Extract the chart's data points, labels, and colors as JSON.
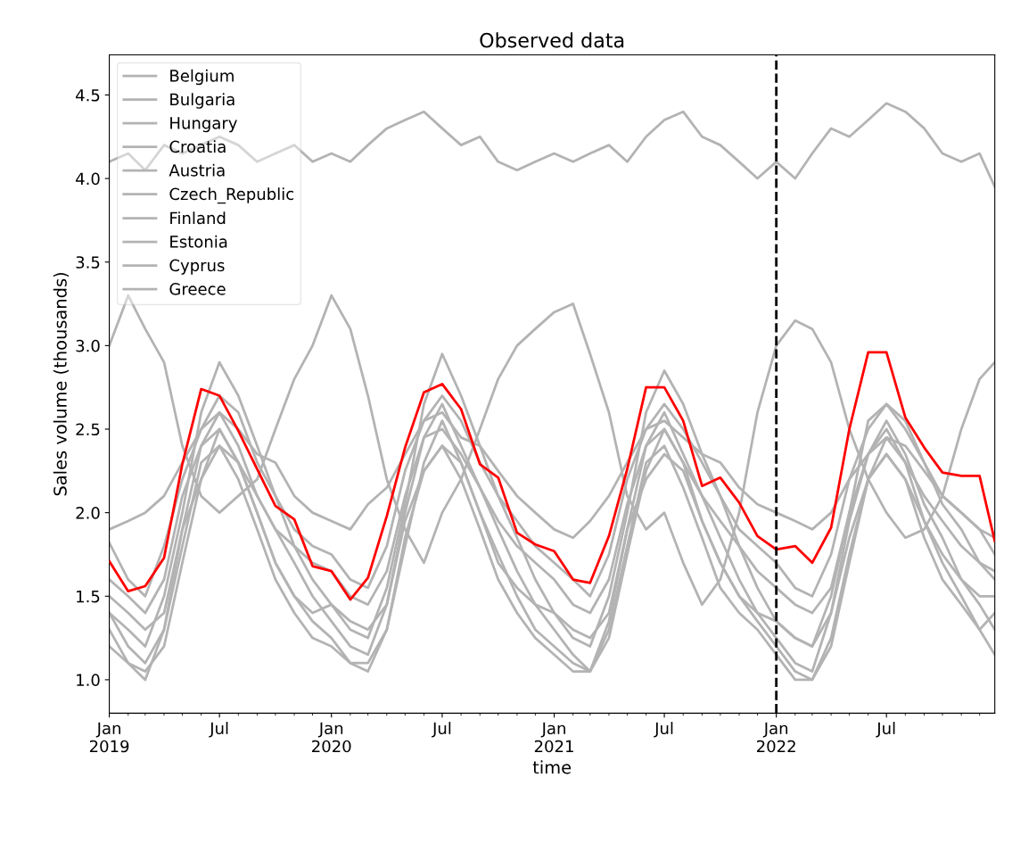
{
  "chart_data": {
    "type": "line",
    "title": "Observed data",
    "xlabel": "time",
    "ylabel": "Sales volume (thousands)",
    "x": [
      "2019-01",
      "2019-02",
      "2019-03",
      "2019-04",
      "2019-05",
      "2019-06",
      "2019-07",
      "2019-08",
      "2019-09",
      "2019-10",
      "2019-11",
      "2019-12",
      "2020-01",
      "2020-02",
      "2020-03",
      "2020-04",
      "2020-05",
      "2020-06",
      "2020-07",
      "2020-08",
      "2020-09",
      "2020-10",
      "2020-11",
      "2020-12",
      "2021-01",
      "2021-02",
      "2021-03",
      "2021-04",
      "2021-05",
      "2021-06",
      "2021-07",
      "2021-08",
      "2021-09",
      "2021-10",
      "2021-11",
      "2021-12",
      "2022-01",
      "2022-02",
      "2022-03",
      "2022-04",
      "2022-05",
      "2022-06",
      "2022-07",
      "2022-08",
      "2022-09",
      "2022-10",
      "2022-11",
      "2022-12",
      "2022-12-26"
    ],
    "xlim": [
      "2019-01-01",
      "2022-12-26"
    ],
    "xticks": [
      {
        "value": "2019-01",
        "label": "Jan\n2019"
      },
      {
        "value": "2019-07",
        "label": "Jul"
      },
      {
        "value": "2020-01",
        "label": "Jan\n2020"
      },
      {
        "value": "2020-07",
        "label": "Jul"
      },
      {
        "value": "2021-01",
        "label": "Jan\n2021"
      },
      {
        "value": "2021-07",
        "label": "Jul"
      },
      {
        "value": "2022-01",
        "label": "Jan\n2022"
      },
      {
        "value": "2022-07",
        "label": "Jul"
      }
    ],
    "ylim": [
      0.8,
      4.74
    ],
    "yticks": [
      {
        "value": 1,
        "label": "1.0"
      },
      1.5,
      {
        "value": 2,
        "label": "2.0"
      },
      2.5,
      {
        "value": 3,
        "label": "3.0"
      },
      3.5,
      {
        "value": 4,
        "label": "4.0"
      },
      4.5
    ],
    "grid": false,
    "legend": "top left",
    "line_style": "solid",
    "ref_lines": [
      {
        "axis": "x",
        "value": "2022-01-01",
        "color": "#000000",
        "line_style": "dashed"
      }
    ],
    "series": [
      {
        "name": "Belgium",
        "color": "#b3b3b3",
        "values": [
          4.1,
          4.15,
          4.05,
          4.2,
          4.15,
          4.2,
          4.25,
          4.2,
          4.1,
          4.15,
          4.2,
          4.1,
          4.15,
          4.1,
          4.2,
          4.3,
          4.35,
          4.4,
          4.3,
          4.2,
          4.25,
          4.1,
          4.05,
          4.1,
          4.15,
          4.1,
          4.15,
          4.2,
          4.1,
          4.25,
          4.35,
          4.4,
          4.25,
          4.2,
          4.1,
          4.0,
          4.1,
          4.0,
          4.15,
          4.3,
          4.25,
          4.35,
          4.45,
          4.4,
          4.3,
          4.15,
          4.1,
          4.15,
          3.95
        ]
      },
      {
        "name": "Bulgaria",
        "color": "#b3b3b3",
        "values": [
          3.0,
          3.3,
          3.1,
          2.9,
          2.4,
          2.1,
          2.0,
          2.1,
          2.2,
          2.5,
          2.8,
          3.0,
          3.3,
          3.1,
          2.7,
          2.2,
          1.9,
          1.7,
          2.0,
          2.2,
          2.5,
          2.8,
          3.0,
          3.1,
          3.2,
          3.25,
          2.95,
          2.6,
          2.1,
          1.9,
          2.0,
          1.7,
          1.45,
          1.6,
          2.0,
          2.6,
          3.0,
          3.15,
          3.1,
          2.9,
          2.5,
          2.2,
          2.0,
          1.85,
          1.9,
          2.1,
          2.5,
          2.8,
          2.9
        ]
      },
      {
        "name": "Hungary",
        "color": "#b3b3b3",
        "values": [
          1.9,
          1.95,
          2.0,
          2.1,
          2.3,
          2.5,
          2.6,
          2.5,
          2.35,
          2.3,
          2.1,
          2.0,
          1.95,
          1.9,
          2.05,
          2.15,
          2.35,
          2.55,
          2.6,
          2.45,
          2.4,
          2.25,
          2.1,
          2.0,
          1.9,
          1.85,
          1.95,
          2.1,
          2.3,
          2.5,
          2.55,
          2.45,
          2.35,
          2.3,
          2.15,
          2.05,
          2.0,
          1.95,
          1.9,
          2.0,
          2.2,
          2.35,
          2.45,
          2.4,
          2.25,
          2.1,
          2.0,
          1.9,
          1.85
        ]
      },
      {
        "name": "Croatia",
        "color": "#b3b3b3",
        "values": [
          1.4,
          1.2,
          1.1,
          1.3,
          1.9,
          2.4,
          2.6,
          2.4,
          2.1,
          1.9,
          1.7,
          1.5,
          1.35,
          1.2,
          1.15,
          1.45,
          2.0,
          2.45,
          2.65,
          2.4,
          2.15,
          1.9,
          1.65,
          1.45,
          1.3,
          1.15,
          1.05,
          1.35,
          1.9,
          2.4,
          2.6,
          2.35,
          2.1,
          1.85,
          1.6,
          1.4,
          1.25,
          1.1,
          1.05,
          1.4,
          1.95,
          2.35,
          2.55,
          2.35,
          2.05,
          1.85,
          1.6,
          1.45,
          1.3
        ]
      },
      {
        "name": "Austria",
        "color": "#b3b3b3",
        "values": [
          1.3,
          1.1,
          1.05,
          1.2,
          1.7,
          2.2,
          2.5,
          2.3,
          2.0,
          1.7,
          1.5,
          1.35,
          1.25,
          1.1,
          1.1,
          1.3,
          1.8,
          2.3,
          2.55,
          2.3,
          2.0,
          1.75,
          1.5,
          1.3,
          1.2,
          1.1,
          1.05,
          1.25,
          1.75,
          2.25,
          2.5,
          2.3,
          1.95,
          1.7,
          1.5,
          1.35,
          1.2,
          1.05,
          1.0,
          1.2,
          1.7,
          2.2,
          2.45,
          2.3,
          1.95,
          1.7,
          1.5,
          1.3,
          1.15
        ]
      },
      {
        "name": "Czech_Republic",
        "color": "#b3b3b3",
        "values": [
          1.6,
          1.5,
          1.4,
          1.6,
          2.1,
          2.4,
          2.5,
          2.3,
          2.1,
          1.9,
          1.8,
          1.7,
          1.65,
          1.5,
          1.45,
          1.65,
          2.1,
          2.45,
          2.5,
          2.35,
          2.15,
          1.95,
          1.8,
          1.7,
          1.6,
          1.45,
          1.4,
          1.6,
          2.05,
          2.4,
          2.5,
          2.3,
          2.1,
          1.95,
          1.8,
          1.65,
          1.55,
          1.45,
          1.4,
          1.55,
          2.0,
          2.35,
          2.5,
          2.3,
          2.1,
          1.95,
          1.8,
          1.7,
          1.6
        ]
      },
      {
        "name": "Finland",
        "color": "#b3b3b3",
        "values": [
          1.2,
          1.1,
          1.0,
          1.3,
          1.8,
          2.3,
          2.4,
          2.2,
          1.9,
          1.6,
          1.4,
          1.25,
          1.2,
          1.1,
          1.05,
          1.3,
          1.85,
          2.25,
          2.4,
          2.2,
          1.9,
          1.6,
          1.4,
          1.25,
          1.15,
          1.05,
          1.05,
          1.3,
          1.8,
          2.3,
          2.4,
          2.15,
          1.85,
          1.55,
          1.4,
          1.3,
          1.15,
          1.0,
          1.0,
          1.25,
          1.75,
          2.2,
          2.35,
          2.2,
          1.85,
          1.6,
          1.45,
          1.3,
          1.4
        ]
      },
      {
        "name": "Estonia",
        "color": "#b3b3b3",
        "values": [
          1.82,
          1.6,
          1.5,
          1.8,
          2.2,
          2.5,
          2.7,
          2.6,
          2.3,
          2.1,
          1.9,
          1.8,
          1.75,
          1.6,
          1.55,
          1.8,
          2.25,
          2.55,
          2.7,
          2.55,
          2.3,
          2.1,
          1.95,
          1.8,
          1.7,
          1.6,
          1.5,
          1.75,
          2.2,
          2.5,
          2.65,
          2.5,
          2.3,
          2.1,
          1.9,
          1.8,
          1.7,
          1.55,
          1.5,
          1.75,
          2.2,
          2.5,
          2.65,
          2.5,
          2.3,
          2.1,
          2.0,
          1.9,
          1.75
        ]
      },
      {
        "name": "Cyprus",
        "color": "#b3b3b3",
        "values": [
          1.5,
          1.4,
          1.3,
          1.4,
          1.9,
          2.2,
          2.4,
          2.3,
          2.0,
          1.7,
          1.5,
          1.4,
          1.45,
          1.35,
          1.3,
          1.45,
          1.95,
          2.25,
          2.4,
          2.3,
          2.0,
          1.7,
          1.55,
          1.45,
          1.4,
          1.3,
          1.25,
          1.4,
          1.9,
          2.2,
          2.35,
          2.25,
          1.95,
          1.7,
          1.5,
          1.4,
          1.35,
          1.25,
          1.2,
          1.4,
          1.85,
          2.2,
          2.35,
          2.2,
          1.95,
          1.75,
          1.6,
          1.5,
          1.5
        ]
      },
      {
        "name": "Greece",
        "color": "#b3b3b3",
        "values": [
          1.4,
          1.3,
          1.2,
          1.5,
          2.0,
          2.6,
          2.9,
          2.7,
          2.4,
          2.1,
          1.8,
          1.6,
          1.45,
          1.3,
          1.25,
          1.55,
          2.05,
          2.65,
          2.95,
          2.7,
          2.4,
          2.1,
          1.85,
          1.6,
          1.4,
          1.25,
          1.2,
          1.5,
          2.0,
          2.6,
          2.85,
          2.65,
          2.35,
          2.1,
          1.8,
          1.55,
          1.35,
          1.25,
          1.2,
          1.5,
          2.0,
          2.55,
          2.65,
          2.55,
          2.3,
          2.05,
          1.9,
          1.7,
          1.65
        ]
      },
      {
        "color": "#ff0000",
        "values": [
          1.71,
          1.53,
          1.56,
          1.73,
          2.29,
          2.74,
          2.7,
          2.49,
          2.26,
          2.04,
          1.96,
          1.68,
          1.65,
          1.48,
          1.61,
          1.98,
          2.39,
          2.72,
          2.77,
          2.62,
          2.29,
          2.21,
          1.88,
          1.81,
          1.77,
          1.6,
          1.58,
          1.86,
          2.26,
          2.75,
          2.75,
          2.55,
          2.16,
          2.21,
          2.06,
          1.86,
          1.78,
          1.8,
          1.7,
          1.91,
          2.5,
          2.96,
          2.96,
          2.57,
          2.39,
          2.24,
          2.22,
          2.22,
          1.83
        ]
      }
    ]
  }
}
